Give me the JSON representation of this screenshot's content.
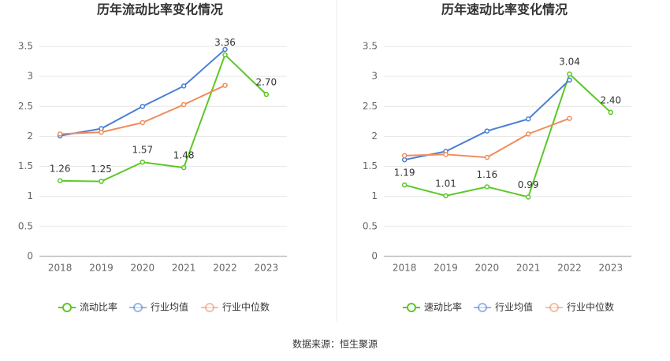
{
  "chart_data": [
    {
      "type": "line",
      "title": "历年流动比率变化情况",
      "categories": [
        "2018",
        "2019",
        "2020",
        "2021",
        "2022",
        "2023"
      ],
      "series": [
        {
          "name": "流动比率",
          "color": "#5cc727",
          "values": [
            1.26,
            1.25,
            1.57,
            1.48,
            3.36,
            2.7
          ],
          "value_labels": [
            "1.26",
            "1.25",
            "1.57",
            "1.48",
            "3.36",
            "2.70"
          ]
        },
        {
          "name": "行业均值",
          "color": "#4a7fd4",
          "values": [
            2.01,
            2.13,
            2.5,
            2.84,
            3.45,
            null
          ]
        },
        {
          "name": "行业中位数",
          "color": "#f08c5a",
          "values": [
            2.04,
            2.07,
            2.23,
            2.53,
            2.85,
            null
          ]
        }
      ],
      "ylim": [
        0,
        3.5
      ],
      "yticks": [
        0,
        0.5,
        1,
        1.5,
        2,
        2.5,
        3,
        3.5
      ],
      "grid": true,
      "legend": "bottom"
    },
    {
      "type": "line",
      "title": "历年速动比率变化情况",
      "categories": [
        "2018",
        "2019",
        "2020",
        "2021",
        "2022",
        "2023"
      ],
      "series": [
        {
          "name": "速动比率",
          "color": "#5cc727",
          "values": [
            1.19,
            1.01,
            1.16,
            0.99,
            3.04,
            2.4
          ],
          "value_labels": [
            "1.19",
            "1.01",
            "1.16",
            "0.99",
            "3.04",
            "2.40"
          ]
        },
        {
          "name": "行业均值",
          "color": "#4a7fd4",
          "values": [
            1.61,
            1.75,
            2.09,
            2.29,
            2.94,
            null
          ]
        },
        {
          "name": "行业中位数",
          "color": "#f08c5a",
          "values": [
            1.68,
            1.7,
            1.65,
            2.04,
            2.3,
            null
          ]
        }
      ],
      "ylim": [
        0,
        3.5
      ],
      "yticks": [
        0,
        0.5,
        1,
        1.5,
        2,
        2.5,
        3,
        3.5
      ],
      "grid": true,
      "legend": "bottom"
    }
  ],
  "source": "数据来源：恒生聚源"
}
